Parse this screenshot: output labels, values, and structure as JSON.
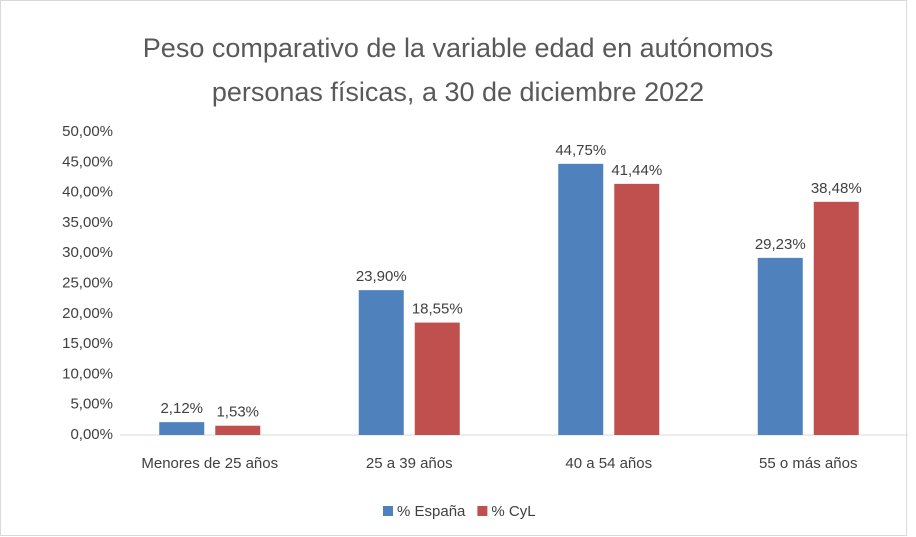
{
  "chart_data": {
    "type": "bar",
    "title": "Peso comparativo de la variable edad en autónomos personas físicas, a 30 de diciembre 2022",
    "categories": [
      "Menores de 25 años",
      "25 a 39 años",
      "40 a 54 años",
      "55 o más años"
    ],
    "series": [
      {
        "name": "% España",
        "color": "#4f81bd",
        "values": [
          2.12,
          23.9,
          44.75,
          29.23
        ],
        "value_labels": [
          "2,12%",
          "23,90%",
          "44,75%",
          "29,23%"
        ]
      },
      {
        "name": "% CyL",
        "color": "#c0504d",
        "values": [
          1.53,
          18.55,
          41.44,
          38.48
        ],
        "value_labels": [
          "1,53%",
          "18,55%",
          "41,44%",
          "38,48%"
        ]
      }
    ],
    "ylim": [
      0,
      50
    ],
    "yticks": [
      {
        "value": 0,
        "label": "0,00%"
      },
      {
        "value": 5,
        "label": "5,00%"
      },
      {
        "value": 10,
        "label": "10,00%"
      },
      {
        "value": 15,
        "label": "15,00%"
      },
      {
        "value": 20,
        "label": "20,00%"
      },
      {
        "value": 25,
        "label": "25,00%"
      },
      {
        "value": 30,
        "label": "30,00%"
      },
      {
        "value": 35,
        "label": "35,00%"
      },
      {
        "value": 40,
        "label": "40,00%"
      },
      {
        "value": 45,
        "label": "45,00%"
      },
      {
        "value": 50,
        "label": "50,00%"
      }
    ],
    "grid": false,
    "legend": "bottom"
  }
}
